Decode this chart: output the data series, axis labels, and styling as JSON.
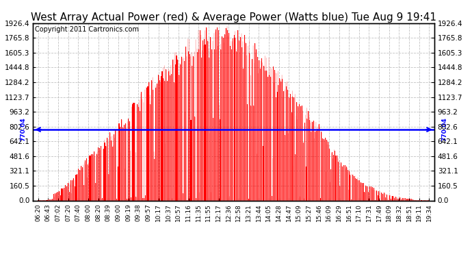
{
  "title": "West Array Actual Power (red) & Average Power (Watts blue) Tue Aug 9 19:41",
  "copyright": "Copyright 2011 Cartronics.com",
  "avg_power": 770.04,
  "ymax": 1926.4,
  "ymin": 0.0,
  "yticks": [
    0.0,
    160.5,
    321.1,
    481.6,
    642.1,
    802.6,
    963.2,
    1123.7,
    1284.2,
    1444.8,
    1605.3,
    1765.8,
    1926.4
  ],
  "bar_color": "#FF0000",
  "line_color": "#0000FF",
  "bg_color": "#FFFFFF",
  "grid_color": "#BBBBBB",
  "title_fontsize": 11,
  "copyright_fontsize": 7,
  "xtick_labels": [
    "06:20",
    "06:43",
    "07:02",
    "07:20",
    "07:40",
    "08:00",
    "08:20",
    "08:39",
    "09:00",
    "09:19",
    "09:38",
    "09:57",
    "10:17",
    "10:37",
    "10:57",
    "11:16",
    "11:35",
    "11:55",
    "12:17",
    "12:36",
    "12:58",
    "13:21",
    "13:44",
    "14:05",
    "14:28",
    "14:47",
    "15:09",
    "15:27",
    "15:46",
    "16:09",
    "16:29",
    "16:51",
    "17:10",
    "17:31",
    "17:49",
    "18:09",
    "18:32",
    "18:51",
    "19:11",
    "19:34"
  ]
}
